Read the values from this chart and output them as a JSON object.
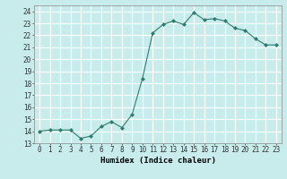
{
  "x": [
    0,
    1,
    2,
    3,
    4,
    5,
    6,
    7,
    8,
    9,
    10,
    11,
    12,
    13,
    14,
    15,
    16,
    17,
    18,
    19,
    20,
    21,
    22,
    23
  ],
  "y": [
    14.0,
    14.1,
    14.1,
    14.1,
    13.4,
    13.6,
    14.4,
    14.8,
    14.3,
    15.4,
    18.4,
    22.2,
    22.9,
    23.2,
    22.9,
    23.9,
    23.3,
    23.4,
    23.2,
    22.6,
    22.4,
    21.7,
    21.2,
    21.2
  ],
  "line_color": "#2d7d6e",
  "marker": "D",
  "markersize": 2.0,
  "linewidth": 0.8,
  "xlabel": "Humidex (Indice chaleur)",
  "xlim": [
    -0.5,
    23.5
  ],
  "ylim": [
    13,
    24.5
  ],
  "yticks": [
    13,
    14,
    15,
    16,
    17,
    18,
    19,
    20,
    21,
    22,
    23,
    24
  ],
  "xticks": [
    0,
    1,
    2,
    3,
    4,
    5,
    6,
    7,
    8,
    9,
    10,
    11,
    12,
    13,
    14,
    15,
    16,
    17,
    18,
    19,
    20,
    21,
    22,
    23
  ],
  "bg_color": "#c8ecec",
  "grid_color": "#ffffff",
  "tick_label_fontsize": 5.5,
  "xlabel_fontsize": 6.5
}
